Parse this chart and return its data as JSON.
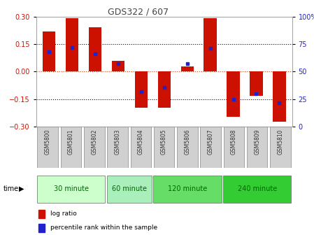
{
  "title": "GDS322 / 607",
  "samples": [
    "GSM5800",
    "GSM5801",
    "GSM5802",
    "GSM5803",
    "GSM5804",
    "GSM5805",
    "GSM5806",
    "GSM5807",
    "GSM5808",
    "GSM5809",
    "GSM5810"
  ],
  "log_ratio": [
    0.22,
    0.29,
    0.24,
    0.06,
    -0.195,
    -0.195,
    0.03,
    0.29,
    -0.245,
    -0.13,
    -0.27
  ],
  "percentile": [
    68,
    72,
    66,
    57,
    32,
    36,
    57,
    71,
    25,
    30,
    22
  ],
  "bar_color": "#cc1100",
  "dot_color": "#2222cc",
  "ylim": [
    -0.3,
    0.3
  ],
  "yticks_left": [
    -0.3,
    -0.15,
    0,
    0.15,
    0.3
  ],
  "yticks_right": [
    0,
    25,
    50,
    75,
    100
  ],
  "groups": [
    {
      "label": "30 minute",
      "start": 0,
      "end": 3,
      "color": "#ccffcc"
    },
    {
      "label": "60 minute",
      "start": 3,
      "end": 5,
      "color": "#aaeebb"
    },
    {
      "label": "120 minute",
      "start": 5,
      "end": 8,
      "color": "#66dd66"
    },
    {
      "label": "240 minute",
      "start": 8,
      "end": 11,
      "color": "#33cc33"
    }
  ],
  "time_label": "time",
  "legend_log_ratio": "log ratio",
  "legend_percentile": "percentile rank within the sample",
  "bg_color": "#ffffff",
  "sample_box_color": "#d0d0d0"
}
